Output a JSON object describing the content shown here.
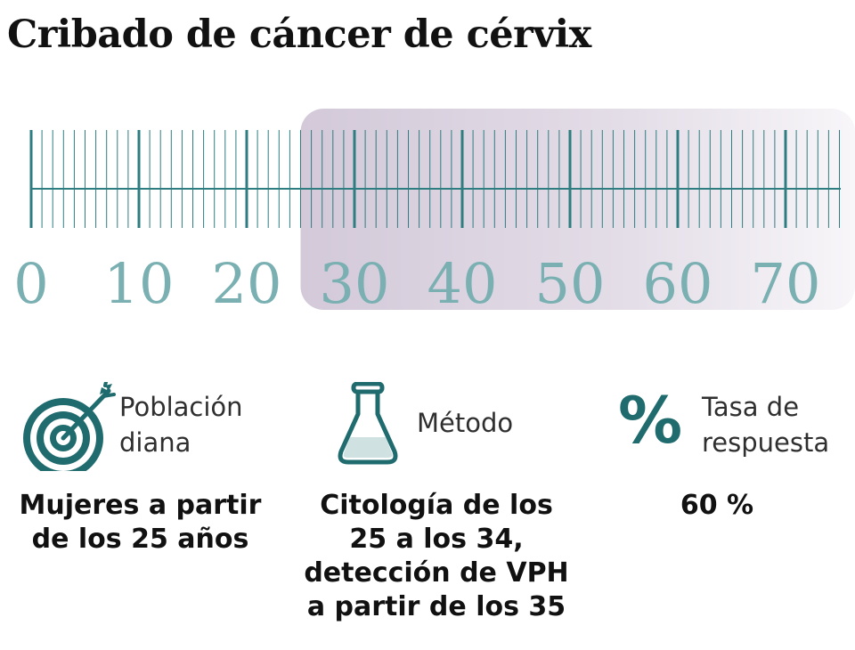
{
  "title": "Cribado de cáncer de cérvix",
  "age_axis": {
    "min": 0,
    "max": 75,
    "major_step": 10,
    "minor_step": 1,
    "tick_labels": [
      "0",
      "10",
      "20",
      "30",
      "40",
      "50",
      "60",
      "70"
    ],
    "highlight_from": 25,
    "colors": {
      "tick": "#2e7d80",
      "label": "#7ab0b2",
      "highlight": "#d8d0dc"
    }
  },
  "columns": [
    {
      "icon": "target-icon",
      "label_lines": [
        "Población",
        "diana"
      ],
      "value_lines": [
        "Mujeres a partir",
        "de los 25 años"
      ]
    },
    {
      "icon": "flask-icon",
      "label_lines": [
        "Método"
      ],
      "value_lines": [
        "Citología de los",
        "25 a los 34,",
        "detección de VPH",
        "a partir de los 35"
      ]
    },
    {
      "icon": "percent-icon",
      "icon_text": "%",
      "label_lines": [
        "Tasa de",
        "respuesta"
      ],
      "value_lines": [
        "60 %"
      ]
    }
  ],
  "colors": {
    "accent": "#1f6b6e",
    "text": "#111111"
  }
}
